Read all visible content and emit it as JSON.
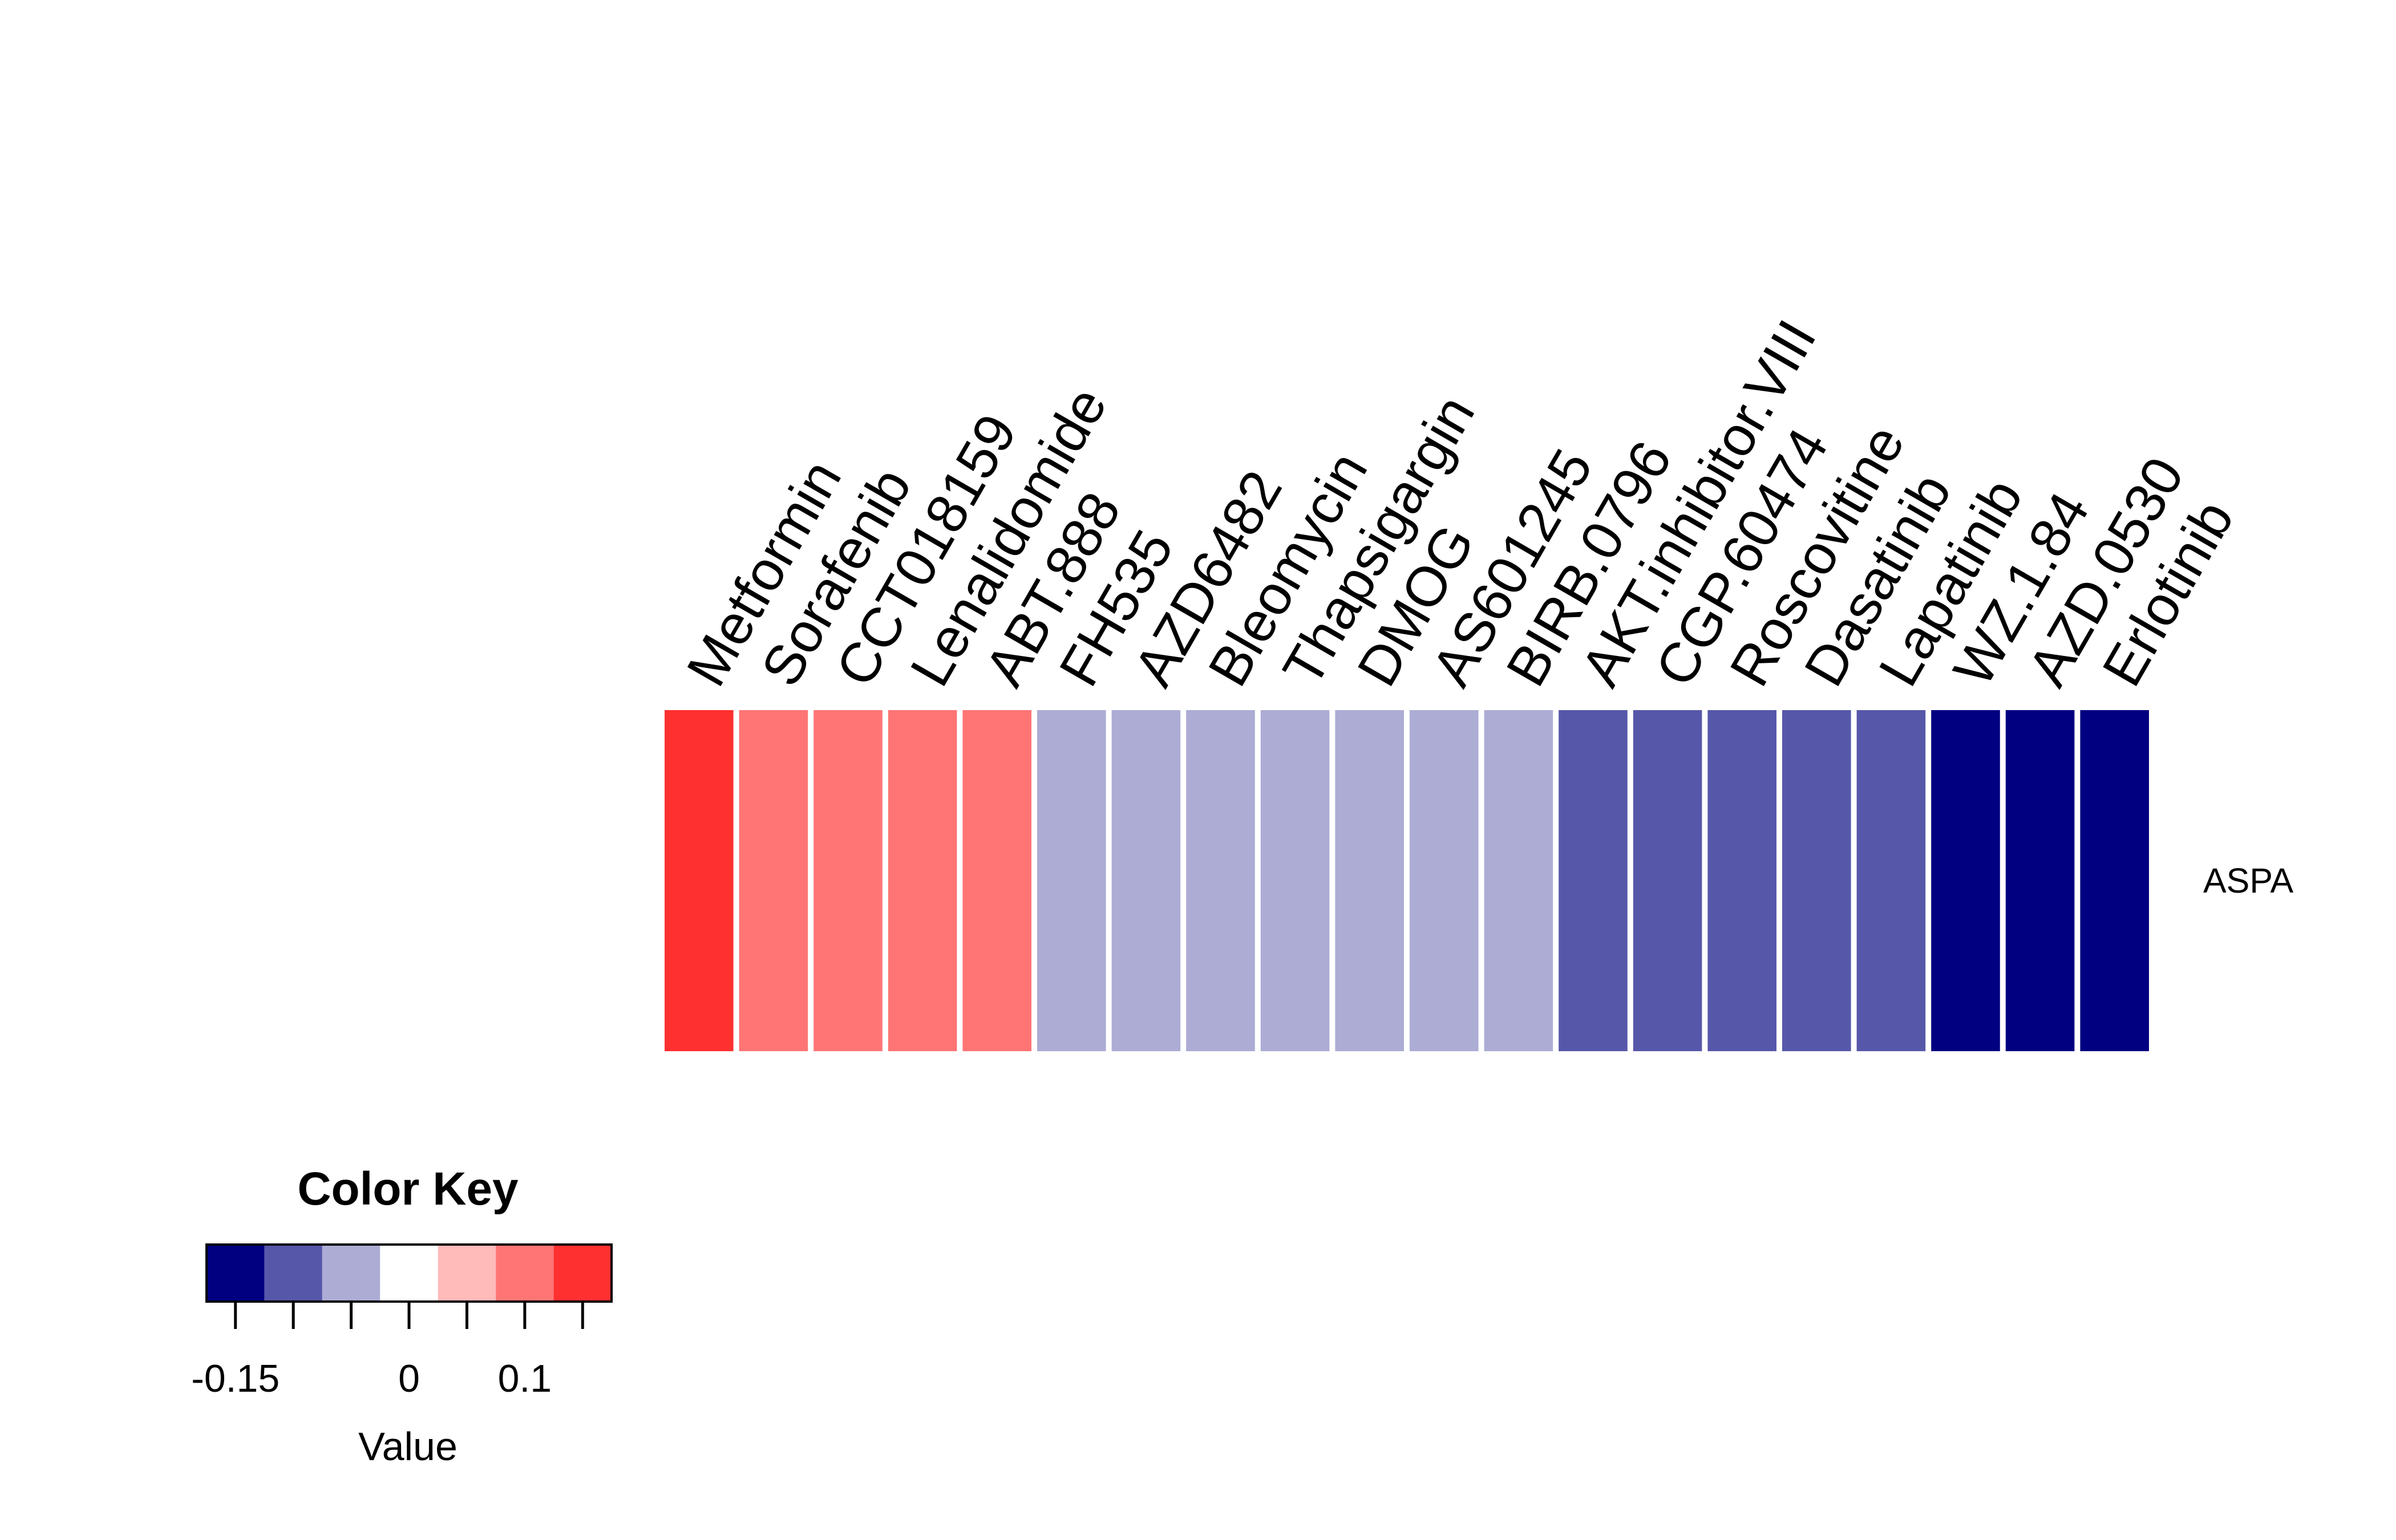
{
  "chart_data": {
    "type": "heatmap",
    "rows": [
      "ASPA"
    ],
    "columns": [
      "Metformin",
      "Sorafenib",
      "CCT018159",
      "Lenalidomide",
      "ABT.888",
      "FH535",
      "AZD6482",
      "Bleomycin",
      "Thapsigargin",
      "DMOG",
      "AS601245",
      "BIRB.0796",
      "AKT.inhibitor.VIII",
      "CGP.60474",
      "Roscovitine",
      "Dasatinib",
      "Lapatinib",
      "WZ.1.84",
      "AZD.0530",
      "Erlotinib"
    ],
    "values": [
      [
        0.15,
        0.1,
        0.1,
        0.1,
        0.1,
        -0.05,
        -0.05,
        -0.05,
        -0.05,
        -0.05,
        -0.05,
        -0.05,
        -0.1,
        -0.1,
        -0.1,
        -0.1,
        -0.1,
        -0.15,
        -0.15,
        -0.15
      ]
    ],
    "color_key": {
      "title": "Color Key",
      "xlabel": "Value",
      "colors": [
        "#000080",
        "#5757aa",
        "#acacd5",
        "#ffffff",
        "#ffbaba",
        "#ff7575",
        "#ff3030"
      ],
      "breaks": [
        -0.175,
        -0.125,
        -0.075,
        -0.025,
        0.025,
        0.075,
        0.125,
        0.175
      ],
      "tick_labels": [
        {
          "value": -0.15,
          "label": "-0.15"
        },
        {
          "value": 0,
          "label": "0"
        },
        {
          "value": 0.1,
          "label": "0.1"
        }
      ]
    }
  }
}
